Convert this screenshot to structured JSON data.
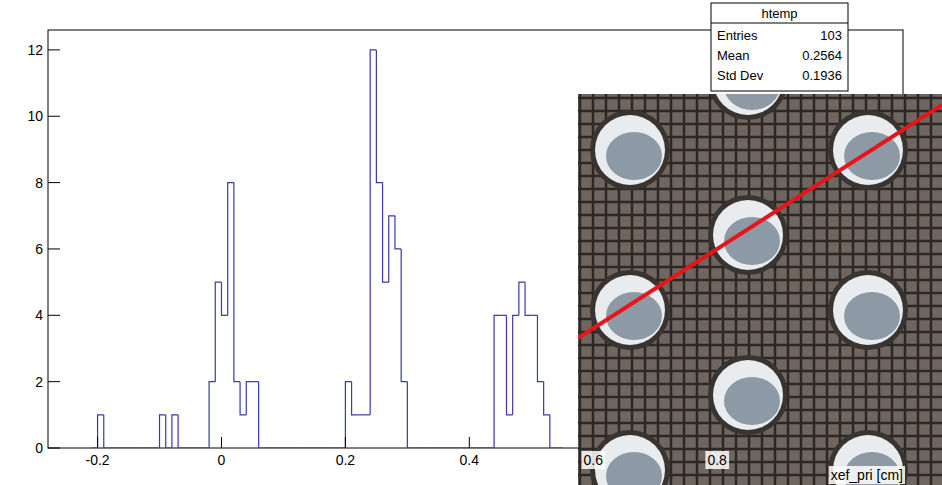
{
  "chart_data": {
    "type": "histogram",
    "x_label": "xef_pri [cm]",
    "color": "#3a3aa8",
    "bins": [
      -0.21,
      -0.2,
      -0.19,
      -0.18,
      -0.17,
      -0.16,
      -0.15,
      -0.14,
      -0.13,
      -0.12,
      -0.11,
      -0.1,
      -0.09,
      -0.08,
      -0.07,
      -0.06,
      -0.05,
      -0.04,
      -0.03,
      -0.02,
      -0.01,
      0,
      0.01,
      0.02,
      0.03,
      0.04,
      0.05,
      0.06,
      0.07,
      0.08,
      0.09,
      0.1,
      0.11,
      0.12,
      0.13,
      0.14,
      0.15,
      0.16,
      0.17,
      0.18,
      0.19,
      0.2,
      0.21,
      0.22,
      0.23,
      0.24,
      0.25,
      0.26,
      0.27,
      0.28,
      0.29,
      0.3,
      0.31,
      0.32,
      0.33,
      0.34,
      0.35,
      0.36,
      0.37,
      0.38,
      0.39,
      0.4,
      0.41,
      0.42,
      0.43,
      0.44,
      0.45,
      0.46,
      0.47,
      0.48,
      0.49,
      0.5,
      0.51,
      0.52,
      0.53,
      0.54,
      0.55
    ],
    "values": [
      0,
      1,
      0,
      0,
      0,
      0,
      0,
      0,
      0,
      0,
      0,
      1,
      0,
      1,
      0,
      0,
      0,
      0,
      0,
      2,
      5,
      4,
      8,
      2,
      1,
      2,
      2,
      0,
      0,
      0,
      0,
      0,
      0,
      0,
      0,
      0,
      0,
      0,
      0,
      0,
      0,
      2,
      1,
      1,
      1,
      12,
      8,
      5,
      7,
      6,
      2,
      0,
      0,
      0,
      0,
      0,
      0,
      0,
      0,
      0,
      0,
      0,
      0,
      0,
      0,
      4,
      4,
      1,
      4,
      5,
      4,
      4,
      2,
      1,
      0,
      0
    ],
    "xlim": [
      -0.28,
      1.1
    ],
    "ylim": [
      0,
      12.6
    ],
    "xticks": [
      -0.2,
      0,
      0.2,
      0.4,
      0.6,
      0.8
    ],
    "yticks": [
      0,
      2,
      4,
      6,
      8,
      10,
      12
    ],
    "grid": false,
    "stats": {
      "title": "htemp",
      "rows": [
        {
          "label": "Entries",
          "value": 103
        },
        {
          "label": "Mean",
          "value": 0.2564
        },
        {
          "label": "Std Dev",
          "value": 0.1936
        }
      ]
    }
  }
}
